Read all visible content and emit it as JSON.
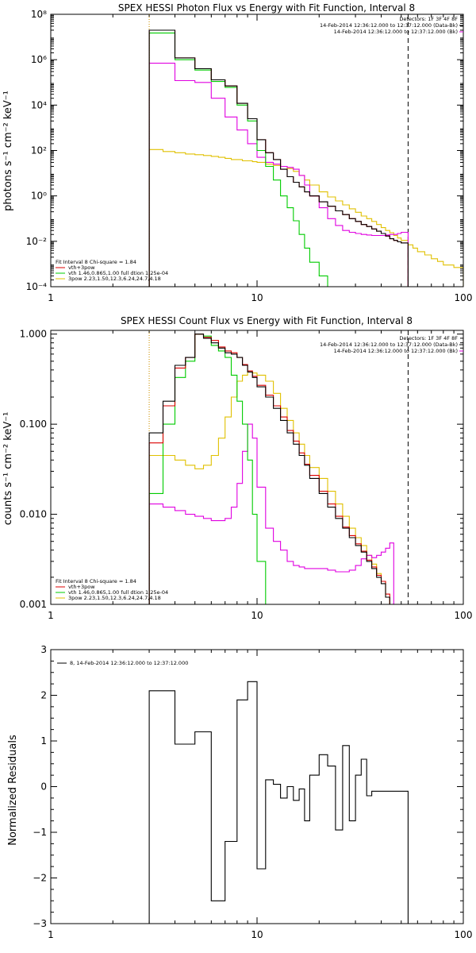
{
  "chart_data": [
    {
      "type": "line",
      "title": "SPEX HESSI Photon Flux vs Energy with Fit Function, Interval 8",
      "ylabel": "photons s⁻¹ cm⁻² keV⁻¹",
      "xlabel": "",
      "xscale": "log",
      "yscale": "log",
      "xlim": [
        1,
        100
      ],
      "ylim": [
        0.0001,
        100000000
      ],
      "x_ticks": [
        1,
        10,
        100
      ],
      "x_tick_labels": [
        "1",
        "10",
        "100"
      ],
      "y_ticks": [
        0.0001,
        0.01,
        1,
        100,
        10000,
        1000000,
        100000000
      ],
      "y_tick_labels": [
        "10⁻⁴",
        "10⁻²",
        "10⁰",
        "10²",
        "10⁴",
        "10⁶",
        "10⁸"
      ],
      "vlines": [
        {
          "x": 3.0,
          "style": "dotted",
          "color": "#000000"
        },
        {
          "x": 3.0,
          "style": "dotted",
          "color": "#e0a000"
        },
        {
          "x": 54,
          "style": "dashed",
          "color": "#000000"
        }
      ],
      "info_lines": [
        "Detectors: 1F 3F 4F 8F",
        "14-Feb-2014 12:36:12.000 to 12:37:12.000 (Data-Bk)",
        "14-Feb-2014 12:36:12.000 to 12:37:12.000 (Bk)"
      ],
      "fit_lines": [
        "Fit Interval 8   Chi-square = 1.84",
        "vth+3pow",
        "vth 1.46,0.865,1.00  full dtion 1.25e-04",
        "3pow 2.23,1.50,12.3,6.24,24.7,4.18"
      ],
      "edges": [
        3.0,
        3.5,
        4.0,
        4.5,
        5.0,
        5.5,
        6.0,
        6.5,
        7.0,
        7.5,
        8.0,
        8.5,
        9.0,
        9.5,
        10.0,
        11.0,
        12.0,
        13.0,
        14.0,
        15.0,
        16.0,
        17.0,
        18.0,
        20.0,
        22.0,
        24.0,
        26.0,
        28.0,
        30.0,
        32.0,
        34.0,
        36.0,
        38.0,
        40.0,
        42.0,
        44.0,
        46.0,
        48.0,
        50.0,
        54.0,
        57.0,
        60.0,
        65.0,
        70.0,
        75.0,
        80.0,
        90.0,
        100.0
      ],
      "series": [
        {
          "name": "",
          "color": "#000000",
          "values": [
            20000000,
            20000000,
            1200000,
            1200000,
            400000,
            400000,
            130000,
            130000,
            70000,
            70000,
            12000,
            12000,
            2500,
            2500,
            300,
            80,
            40,
            15,
            7,
            4,
            2.5,
            1.5,
            1,
            0.55,
            0.35,
            0.22,
            0.15,
            0.1,
            0.075,
            0.055,
            0.045,
            0.035,
            0.028,
            0.022,
            0.017,
            0.013,
            0.011,
            0.0095,
            0.0085
          ]
        },
        {
          "name": "vth+3pow",
          "color": "#dd0000",
          "values": [
            20000000,
            20000000,
            1200000,
            1200000,
            400000,
            400000,
            130000,
            130000,
            70000,
            70000,
            12000,
            12000,
            2500,
            2500,
            300,
            80,
            40,
            15,
            7,
            4,
            2.5,
            1.5,
            1,
            0.55,
            0.35,
            0.22,
            0.15,
            0.1,
            0.075,
            0.055,
            0.045,
            0.035,
            0.028,
            0.022,
            0.017,
            0.013,
            0.011,
            0.0095,
            0.0085
          ]
        },
        {
          "name": "vth",
          "color": "#00cc00",
          "values": [
            15000000,
            15000000,
            1000000,
            1000000,
            350000,
            350000,
            110000,
            110000,
            60000,
            60000,
            10000,
            10000,
            2000,
            2000,
            100,
            20,
            5,
            1,
            0.3,
            0.08,
            0.02,
            0.005,
            0.0012,
            0.0003,
            8e-05
          ]
        },
        {
          "name": "3pow",
          "color": "#e0c000",
          "values": [
            110,
            90,
            80,
            70,
            65,
            60,
            55,
            50,
            45,
            40,
            40,
            35,
            35,
            32,
            30,
            25,
            22,
            20,
            16,
            12,
            8,
            5,
            3,
            1.5,
            0.9,
            0.6,
            0.4,
            0.27,
            0.19,
            0.13,
            0.1,
            0.075,
            0.055,
            0.04,
            0.03,
            0.024,
            0.018,
            0.014,
            0.011,
            0.007,
            0.005,
            0.0035,
            0.0025,
            0.0017,
            0.0013,
            0.0009,
            0.0007
          ]
        },
        {
          "name": "Bk",
          "color": "#e000e0",
          "values": [
            700000,
            700000,
            120000,
            120000,
            100000,
            100000,
            20000,
            20000,
            3000,
            3000,
            800,
            800,
            200,
            200,
            50,
            30,
            25,
            20,
            18,
            15,
            8,
            3,
            1,
            0.3,
            0.1,
            0.05,
            0.03,
            0.025,
            0.022,
            0.02,
            0.019,
            0.018,
            0.018,
            0.018,
            0.019,
            0.02,
            0.02,
            0.022,
            0.025
          ]
        }
      ]
    },
    {
      "type": "line",
      "title": "SPEX HESSI Count Flux vs Energy with Fit Function, Interval 8",
      "ylabel": "counts s⁻¹ cm⁻² keV⁻¹",
      "xlabel": "",
      "xscale": "log",
      "yscale": "log",
      "xlim": [
        1,
        100
      ],
      "ylim": [
        0.001,
        1.1
      ],
      "x_ticks": [
        1,
        10,
        100
      ],
      "x_tick_labels": [
        "1",
        "10",
        "100"
      ],
      "y_ticks": [
        0.001,
        0.01,
        0.1,
        1
      ],
      "y_tick_labels": [
        "0.001",
        "0.010",
        "0.100",
        "1.000"
      ],
      "vlines": [
        {
          "x": 3.0,
          "style": "dotted",
          "color": "#000000"
        },
        {
          "x": 3.0,
          "style": "dotted",
          "color": "#e0a000"
        },
        {
          "x": 54,
          "style": "dashed",
          "color": "#000000"
        }
      ],
      "info_lines": [
        "Detectors: 1F 3F 4F 8F",
        "14-Feb-2014 12:36:12.000 to 12:37:12.000 (Data-Bk)",
        "14-Feb-2014 12:36:12.000 to 12:37:12.000 (Bk)"
      ],
      "fit_lines": [
        "Fit Interval 8   Chi-square = 1.84",
        "vth+3pow",
        "vth 1.46,0.865,1.00  full dtion 1.25e-04",
        "3pow 2.23,1.50,12.3,6.24,24.7,4.18"
      ],
      "edges": [
        3.0,
        3.5,
        4.0,
        4.5,
        5.0,
        5.5,
        6.0,
        6.5,
        7.0,
        7.5,
        8.0,
        8.5,
        9.0,
        9.5,
        10.0,
        11.0,
        12.0,
        13.0,
        14.0,
        15.0,
        16.0,
        17.0,
        18.0,
        20.0,
        22.0,
        24.0,
        26.0,
        28.0,
        30.0,
        32.0,
        34.0,
        36.0,
        38.0,
        40.0,
        42.0,
        44.0,
        46.0,
        48.0,
        50.0,
        54.0,
        57.0,
        60.0
      ],
      "series": [
        {
          "name": "",
          "color": "#000000",
          "values": [
            0.08,
            0.18,
            0.45,
            0.55,
            1.0,
            0.9,
            0.8,
            0.7,
            0.62,
            0.6,
            0.55,
            0.45,
            0.38,
            0.33,
            0.26,
            0.2,
            0.15,
            0.11,
            0.08,
            0.06,
            0.045,
            0.035,
            0.025,
            0.017,
            0.012,
            0.009,
            0.007,
            0.0055,
            0.0045,
            0.0038,
            0.003,
            0.0025,
            0.002,
            0.0017,
            0.0012
          ]
        },
        {
          "name": "vth+3pow",
          "color": "#dd0000",
          "values": [
            0.062,
            0.16,
            0.42,
            0.55,
            1.0,
            0.92,
            0.85,
            0.72,
            0.65,
            0.62,
            0.55,
            0.46,
            0.39,
            0.34,
            0.27,
            0.21,
            0.16,
            0.12,
            0.085,
            0.065,
            0.048,
            0.036,
            0.027,
            0.018,
            0.013,
            0.0095,
            0.0072,
            0.0058,
            0.0047,
            0.0039,
            0.0031,
            0.0026,
            0.0021,
            0.0018,
            0.0013
          ]
        },
        {
          "name": "vth",
          "color": "#00cc00",
          "values": [
            0.017,
            0.1,
            0.33,
            0.5,
            1.0,
            0.95,
            0.75,
            0.65,
            0.55,
            0.35,
            0.18,
            0.1,
            0.04,
            0.01,
            0.003,
            0.0009
          ]
        },
        {
          "name": "3pow",
          "color": "#e0c000",
          "values": [
            0.045,
            0.045,
            0.04,
            0.035,
            0.032,
            0.035,
            0.045,
            0.07,
            0.12,
            0.2,
            0.3,
            0.35,
            0.38,
            0.37,
            0.35,
            0.3,
            0.22,
            0.15,
            0.11,
            0.08,
            0.06,
            0.045,
            0.033,
            0.025,
            0.018,
            0.013,
            0.0095,
            0.007,
            0.0055,
            0.0045,
            0.0035,
            0.0028,
            0.0022,
            0.0018,
            0.0012,
            0.0009
          ]
        },
        {
          "name": "Bk",
          "color": "#e000e0",
          "values": [
            0.013,
            0.012,
            0.011,
            0.01,
            0.0095,
            0.009,
            0.0085,
            0.0085,
            0.009,
            0.012,
            0.022,
            0.05,
            0.1,
            0.07,
            0.02,
            0.007,
            0.005,
            0.004,
            0.003,
            0.0027,
            0.0026,
            0.0025,
            0.0025,
            0.0025,
            0.0024,
            0.0023,
            0.0023,
            0.0024,
            0.0027,
            0.0032,
            0.0035,
            0.0033,
            0.0035,
            0.0038,
            0.0042,
            0.0048
          ]
        }
      ]
    },
    {
      "type": "line",
      "title": "",
      "ylabel": "Normalized Residuals",
      "xlabel": "",
      "xscale": "log",
      "yscale": "linear",
      "xlim": [
        1,
        100
      ],
      "ylim": [
        -3,
        3
      ],
      "x_ticks": [
        1,
        10,
        100
      ],
      "x_tick_labels": [
        "1",
        "10",
        "100"
      ],
      "y_ticks": [
        -3,
        -2,
        -1,
        0,
        1,
        2,
        3
      ],
      "y_tick_labels": [
        "−3",
        "−2",
        "−1",
        "0",
        "1",
        "2",
        "3"
      ],
      "legend": "8, 14-Feb-2014 12:36:12.000 to 12:37:12.000",
      "edges": [
        3.0,
        3.5,
        4.0,
        4.5,
        5.0,
        5.5,
        6.0,
        6.5,
        7.0,
        7.5,
        8.0,
        8.5,
        9.0,
        9.5,
        10.0,
        11.0,
        12.0,
        13.0,
        14.0,
        15.0,
        16.0,
        17.0,
        18.0,
        20.0,
        22.0,
        24.0,
        26.0,
        28.0,
        30.0,
        32.0,
        34.0,
        36.0,
        38.0,
        40.0,
        42.0,
        44.0,
        46.0,
        48.0,
        50.0,
        54.0
      ],
      "series": [
        {
          "name": "",
          "color": "#000000",
          "values": [
            2.1,
            2.1,
            0.93,
            0.93,
            1.2,
            1.2,
            -2.5,
            -2.5,
            -1.2,
            -1.2,
            1.9,
            1.9,
            2.3,
            2.3,
            -1.8,
            0.15,
            0.05,
            -0.25,
            0.0,
            -0.3,
            -0.05,
            -0.75,
            0.25,
            0.7,
            0.45,
            -0.95,
            0.9,
            -0.75,
            0.25,
            0.6,
            -0.2,
            -0.1,
            -0.1,
            -0.1,
            -0.1,
            -0.1,
            -0.1,
            -0.1,
            -0.1
          ]
        }
      ]
    }
  ]
}
